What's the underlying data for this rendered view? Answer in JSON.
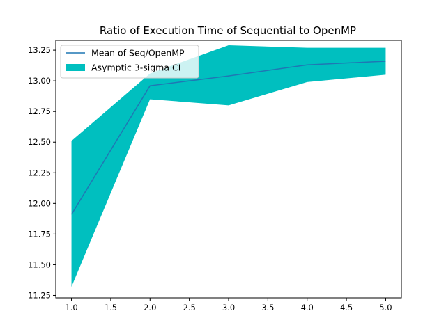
{
  "chart_data": {
    "type": "line",
    "title": "Ratio of Execution Time of Sequential to OpenMP",
    "xlabel": "",
    "ylabel": "",
    "x": [
      1.0,
      2.0,
      3.0,
      4.0,
      5.0
    ],
    "xlim": [
      0.8,
      5.2
    ],
    "ylim": [
      11.23,
      13.33
    ],
    "xticks": [
      1.0,
      1.5,
      2.0,
      2.5,
      3.0,
      3.5,
      4.0,
      4.5,
      5.0
    ],
    "xtick_labels": [
      "1.0",
      "1.5",
      "2.0",
      "2.5",
      "3.0",
      "3.5",
      "4.0",
      "4.5",
      "5.0"
    ],
    "yticks": [
      11.25,
      11.5,
      11.75,
      12.0,
      12.25,
      12.5,
      12.75,
      13.0,
      13.25
    ],
    "ytick_labels": [
      "11.25",
      "11.50",
      "11.75",
      "12.00",
      "12.25",
      "12.50",
      "12.75",
      "13.00",
      "13.25"
    ],
    "series": [
      {
        "name": "Mean of Seq/OpenMP",
        "kind": "line",
        "color": "#1f77b4",
        "values": [
          11.91,
          12.96,
          13.04,
          13.13,
          13.16
        ]
      },
      {
        "name": "Asymptic 3-sigma CI",
        "kind": "band",
        "color": "#00bfbf",
        "lower": [
          11.32,
          12.85,
          12.8,
          12.99,
          13.05
        ],
        "upper": [
          12.51,
          13.06,
          13.29,
          13.27,
          13.27
        ]
      }
    ],
    "legend_position": "top-left",
    "grid": false
  }
}
